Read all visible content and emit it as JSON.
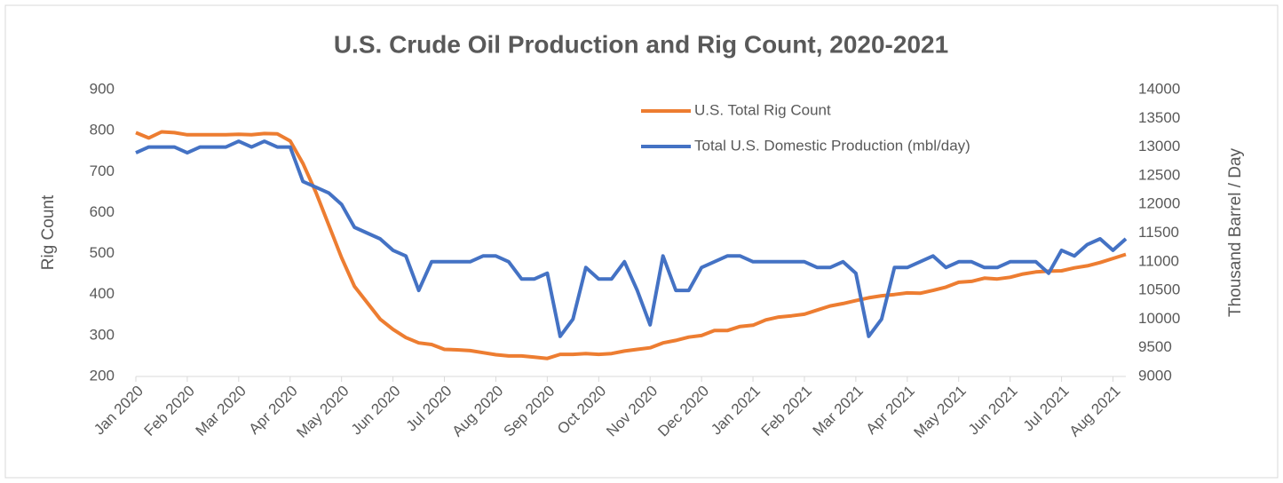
{
  "chart_data": {
    "type": "line",
    "title": "U.S. Crude Oil Production and Rig Count, 2020-2021",
    "ylabel": "Rig Count",
    "y2label": "Thousand Barrel / Day",
    "categories": [
      "Jan 2020",
      null,
      null,
      null,
      "Feb 2020",
      null,
      null,
      null,
      "Mar 2020",
      null,
      null,
      null,
      "Apr 2020",
      null,
      null,
      null,
      "May 2020",
      null,
      null,
      null,
      "Jun 2020",
      null,
      null,
      null,
      "Jul 2020",
      null,
      null,
      null,
      "Aug 2020",
      null,
      null,
      null,
      "Sep 2020",
      null,
      null,
      null,
      "Oct 2020",
      null,
      null,
      null,
      "Nov 2020",
      null,
      null,
      null,
      "Dec 2020",
      null,
      null,
      null,
      "Jan 2021",
      null,
      null,
      null,
      "Feb 2021",
      null,
      null,
      null,
      "Mar 2021",
      null,
      null,
      null,
      "Apr 2021",
      null,
      null,
      null,
      "May 2021",
      null,
      null,
      null,
      "Jun 2021",
      null,
      null,
      null,
      "Jul 2021",
      null,
      null,
      null,
      "Aug 2021",
      null
    ],
    "series": [
      {
        "name": "U.S. Total Rig Count",
        "color": "#ed7d31",
        "axis": "y",
        "values": [
          795,
          782,
          797,
          795,
          790,
          790,
          790,
          790,
          791,
          790,
          793,
          792,
          775,
          720,
          650,
          570,
          490,
          420,
          380,
          340,
          315,
          295,
          282,
          278,
          266,
          265,
          263,
          258,
          253,
          250,
          250,
          247,
          244,
          254,
          254,
          256,
          254,
          256,
          262,
          266,
          270,
          282,
          288,
          296,
          300,
          312,
          312,
          322,
          325,
          338,
          345,
          348,
          352,
          362,
          372,
          378,
          385,
          392,
          397,
          400,
          404,
          403,
          410,
          418,
          430,
          432,
          440,
          438,
          442,
          450,
          455,
          457,
          458,
          465,
          470,
          478,
          488,
          498
        ]
      },
      {
        "name": "Total U.S. Domestic Production (mbl/day)",
        "color": "#4472c4",
        "axis": "y2",
        "values": [
          12900,
          13000,
          13000,
          13000,
          12900,
          13000,
          13000,
          13000,
          13100,
          13000,
          13100,
          13000,
          13000,
          12400,
          12300,
          12200,
          12000,
          11600,
          11500,
          11400,
          11200,
          11100,
          10500,
          11000,
          11000,
          11000,
          11000,
          11100,
          11100,
          11000,
          10700,
          10700,
          10800,
          9700,
          10000,
          10900,
          10700,
          10700,
          11000,
          10500,
          9900,
          11100,
          10500,
          10500,
          10900,
          11000,
          11100,
          11100,
          11000,
          11000,
          11000,
          11000,
          11000,
          10900,
          10900,
          11000,
          10800,
          9700,
          10000,
          10900,
          10900,
          11000,
          11100,
          10900,
          11000,
          11000,
          10900,
          10900,
          11000,
          11000,
          11000,
          10800,
          11200,
          11100,
          11300,
          11400,
          11200,
          11400
        ]
      }
    ],
    "ylim": [
      200,
      900
    ],
    "yticks": [
      200,
      300,
      400,
      500,
      600,
      700,
      800,
      900
    ],
    "y2lim": [
      9000,
      14000
    ],
    "y2ticks": [
      9000,
      9500,
      10000,
      10500,
      11000,
      11500,
      12000,
      12500,
      13000,
      13500,
      14000
    ],
    "grid": false,
    "legend": "top"
  }
}
